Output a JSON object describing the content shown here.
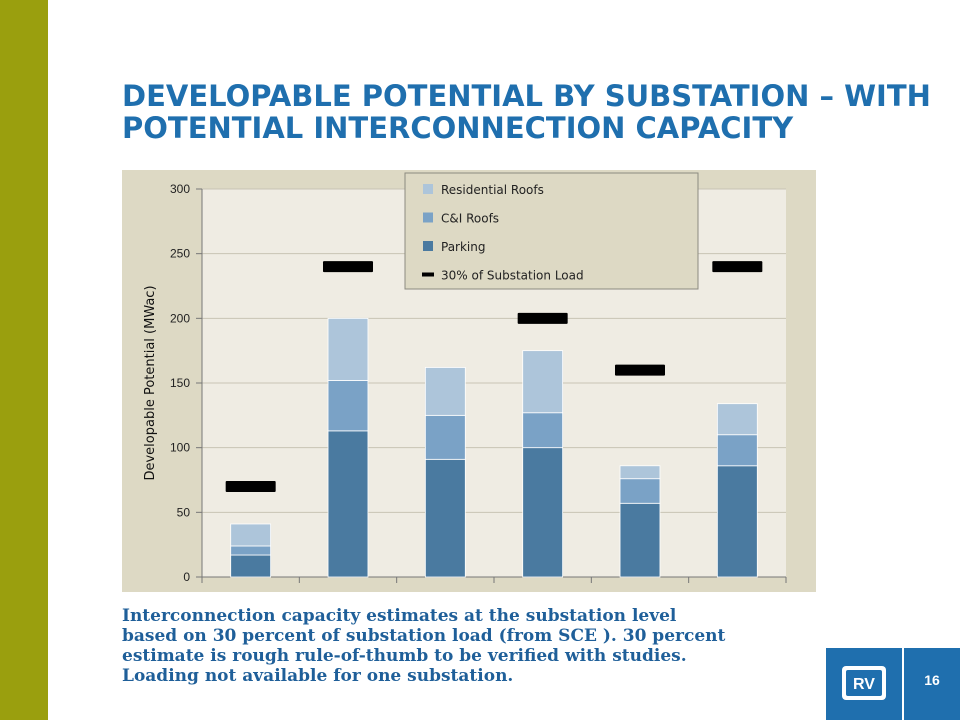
{
  "slide": {
    "title_line1": "DEVELOPABLE POTENTIAL BY SUBSTATION – WITH",
    "title_line2": "POTENTIAL INTERCONNECTION CAPACITY",
    "caption_lines": [
      "Interconnection capacity estimates at the substation level",
      "based on 30 percent of substation load (from SCE ).  30 percent",
      "estimate is rough rule-of-thumb to be verified with studies.",
      "Loading not available for one substation."
    ],
    "page_number": "16",
    "logo_text": "RV",
    "colors": {
      "sidebar": "#9a9f0e",
      "title": "#1f6fae",
      "panel": "#ddd9c4",
      "plot_bg": "#efece3",
      "parking": "#4a7aa0",
      "ci_roofs": "#7aa2c6",
      "residential_roofs": "#adc5da",
      "load_marker": "#000000"
    }
  },
  "chart_data": {
    "type": "bar",
    "stacked": true,
    "categories": [
      "",
      "",
      "",
      "",
      "",
      ""
    ],
    "ylabel": "Developable Potential (MWac)",
    "xlabel": "",
    "ylim": [
      0,
      300
    ],
    "yticks": [
      0,
      50,
      100,
      150,
      200,
      250,
      300
    ],
    "grid": true,
    "legend_position": "top-center",
    "series": [
      {
        "name": "Parking",
        "values": [
          17,
          113,
          91,
          100,
          57,
          86
        ]
      },
      {
        "name": "C&I Roofs",
        "values": [
          7,
          39,
          34,
          27,
          19,
          24
        ]
      },
      {
        "name": "Residential Roofs",
        "values": [
          17,
          48,
          37,
          48,
          10,
          24
        ]
      }
    ],
    "legend_order": [
      "Residential Roofs",
      "C&I Roofs",
      "Parking",
      "30% of Substation Load"
    ],
    "load_marker": {
      "name": "30% of Substation Load",
      "values": [
        70,
        240,
        null,
        200,
        160,
        240
      ]
    }
  }
}
